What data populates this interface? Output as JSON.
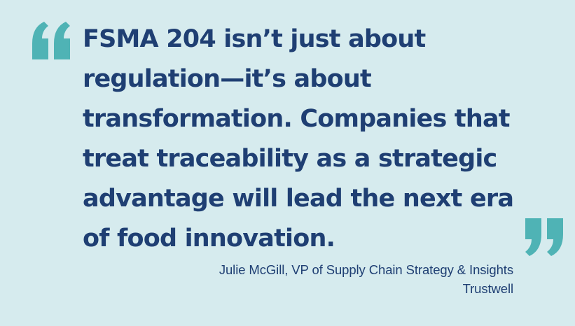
{
  "quote": {
    "lines": [
      "FSMA 204 isn’t just about",
      "regulation—it’s about",
      "transformation. Companies that",
      "treat traceability as a strategic",
      "advantage will lead the next era",
      "of food innovation."
    ],
    "open_icon": "open-quote-icon",
    "close_icon": "close-quote-icon"
  },
  "attribution": {
    "person": "Julie McGill, VP of Supply Chain Strategy & Insights",
    "company": "Trustwell"
  },
  "colors": {
    "background": "#d6ebee",
    "text": "#1f3f73",
    "accent": "#4fb3b5"
  }
}
